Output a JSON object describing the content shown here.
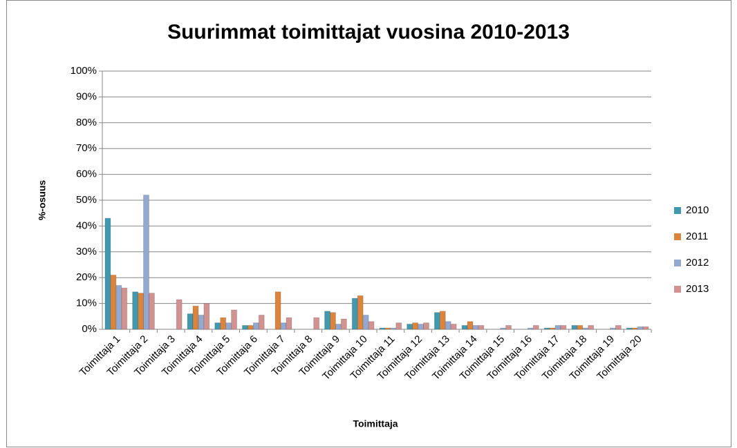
{
  "chart_data": {
    "type": "bar",
    "title": "Suurimmat toimittajat vuosina 2010-2013",
    "x_label": "Toimittaja",
    "y_label": "%-osuus",
    "categories": [
      "Toimittaja 1",
      "Toimittaja 2",
      "Toimittaja 3",
      "Toimittaja 4",
      "Toimittaja 5",
      "Toimittaja 6",
      "Toimittaja 7",
      "Toimittaja 8",
      "Toimittaja 9",
      "Toimittaja 10",
      "Toimittaja 11",
      "Toimittaja 12",
      "Toimittaja 13",
      "Toimittaja 14",
      "Toimittaja 15",
      "Toimittaja 16",
      "Toimittaja 17",
      "Toimittaja 18",
      "Toimittaja 19",
      "Toimittaja 20"
    ],
    "series": [
      {
        "name": "2010",
        "color": "#4198af",
        "values": [
          43,
          14.5,
          0,
          6,
          2.5,
          1.5,
          0,
          0,
          7,
          12,
          0.5,
          2,
          6.5,
          1.5,
          0,
          0,
          0.5,
          1.5,
          0,
          0.5
        ]
      },
      {
        "name": "2011",
        "color": "#db843d",
        "values": [
          21,
          14,
          0,
          9,
          4.5,
          1.5,
          14.5,
          0,
          6.5,
          13,
          0.5,
          2.5,
          7,
          3,
          0,
          0,
          0.5,
          1.5,
          0,
          0.5
        ]
      },
      {
        "name": "2012",
        "color": "#93a9cf",
        "values": [
          17,
          52,
          0,
          5.5,
          2.5,
          2.5,
          2.5,
          0,
          2,
          5.5,
          0.5,
          2,
          3,
          1.5,
          0.5,
          0.5,
          1.5,
          0.5,
          0.5,
          1
        ]
      },
      {
        "name": "2013",
        "color": "#d19392",
        "values": [
          16,
          14,
          11.5,
          10,
          7.5,
          5.5,
          4.5,
          4.5,
          4,
          3,
          2.5,
          2.5,
          2,
          1.5,
          1.5,
          1.5,
          1.5,
          1.5,
          1.5,
          1
        ]
      }
    ],
    "ylim": [
      0,
      100
    ],
    "yticks": [
      {
        "value": 0,
        "label": "0%"
      },
      {
        "value": 10,
        "label": "10%"
      },
      {
        "value": 20,
        "label": "20%"
      },
      {
        "value": 30,
        "label": "30%"
      },
      {
        "value": 40,
        "label": "40%"
      },
      {
        "value": 50,
        "label": "50%"
      },
      {
        "value": 60,
        "label": "60%"
      },
      {
        "value": 70,
        "label": "70%"
      },
      {
        "value": 80,
        "label": "80%"
      },
      {
        "value": 90,
        "label": "90%"
      },
      {
        "value": 100,
        "label": "100%"
      }
    ],
    "grid": true,
    "legend": "right"
  }
}
